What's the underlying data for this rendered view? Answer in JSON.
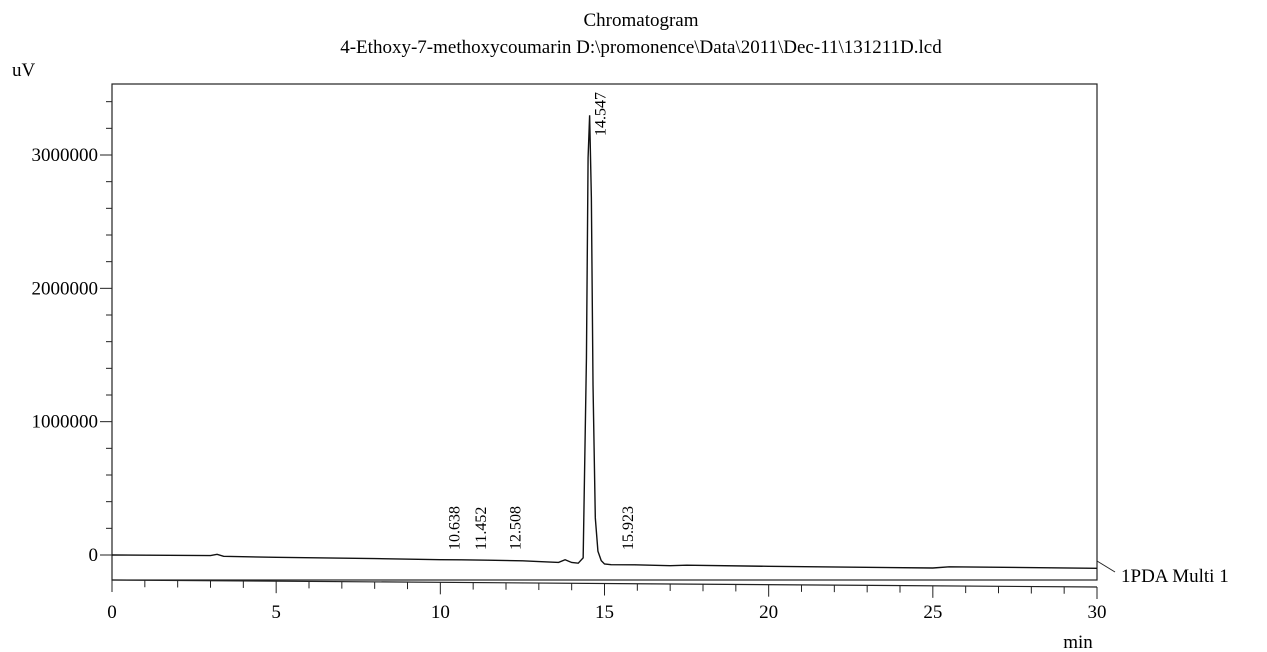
{
  "chart_data": {
    "type": "line",
    "title": "Chromatogram",
    "subtitle": "4-Ethoxy-7-methoxycoumarin D:\\promonence\\Data\\2011\\Dec-11\\131211D.lcd",
    "xlabel": "min",
    "ylabel": "uV",
    "xlim": [
      0,
      30
    ],
    "ylim": [
      -250000,
      3500000
    ],
    "x_ticks": [
      0,
      5,
      10,
      15,
      20,
      25,
      30
    ],
    "y_ticks": [
      0,
      1000000,
      2000000,
      3000000
    ],
    "grid": false,
    "series": [
      {
        "name": "1PDA Multi 1",
        "x": [
          0,
          3.0,
          3.2,
          3.4,
          5,
          8,
          10,
          10.638,
          11.452,
          12.508,
          13.0,
          13.6,
          13.8,
          14.0,
          14.2,
          14.35,
          14.45,
          14.5,
          14.547,
          14.6,
          14.65,
          14.72,
          14.8,
          14.9,
          15.0,
          15.2,
          15.923,
          17.0,
          17.5,
          20,
          25,
          25.5,
          30
        ],
        "y": [
          0,
          0,
          10000,
          -5000,
          -10000,
          -15000,
          -20000,
          -20000,
          -22000,
          -25000,
          -30000,
          -35000,
          -15000,
          -35000,
          -40000,
          0,
          1500000,
          3000000,
          3320000,
          2700000,
          1300000,
          300000,
          50000,
          -20000,
          -45000,
          -50000,
          -50000,
          -55000,
          -50000,
          -55000,
          -60000,
          -50000,
          -55000
        ]
      }
    ],
    "peak_labels": [
      {
        "x": 10.638,
        "label": "10.638"
      },
      {
        "x": 11.452,
        "label": "11.452"
      },
      {
        "x": 12.508,
        "label": "12.508"
      },
      {
        "x": 14.547,
        "label": "14.547"
      },
      {
        "x": 15.923,
        "label": "15.923"
      }
    ],
    "series_label": "1PDA Multi 1",
    "legend": "right"
  },
  "style": {
    "line_color": "#111111",
    "axis_color": "#222222"
  }
}
